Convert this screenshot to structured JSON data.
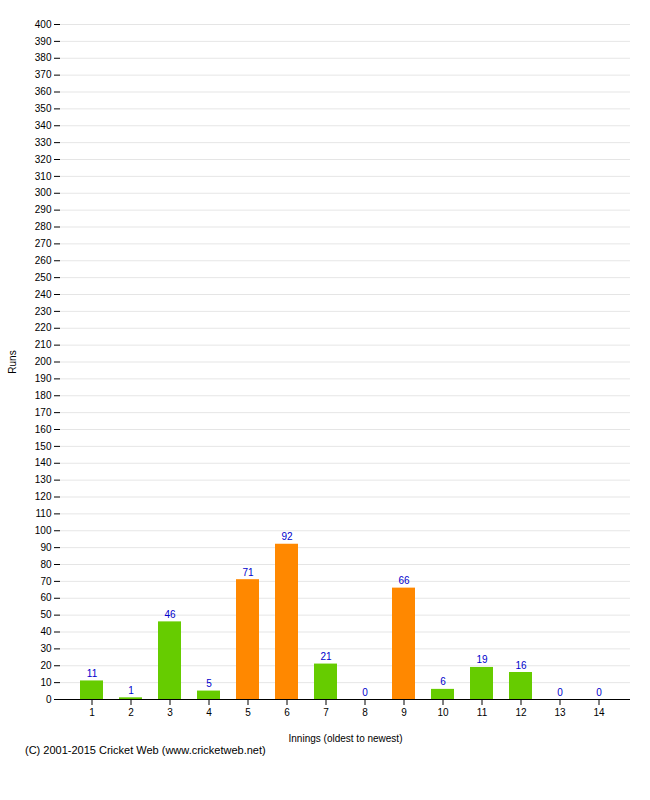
{
  "chart_data": {
    "type": "bar",
    "categories": [
      "1",
      "2",
      "3",
      "4",
      "5",
      "6",
      "7",
      "8",
      "9",
      "10",
      "11",
      "12",
      "13",
      "14"
    ],
    "values": [
      11,
      1,
      46,
      5,
      71,
      92,
      21,
      0,
      66,
      6,
      19,
      16,
      0,
      0
    ],
    "colors": [
      "#66cc00",
      "#66cc00",
      "#66cc00",
      "#66cc00",
      "#ff8800",
      "#ff8800",
      "#66cc00",
      "#66cc00",
      "#ff8800",
      "#66cc00",
      "#66cc00",
      "#66cc00",
      "#66cc00",
      "#66cc00"
    ],
    "xlabel": "Innings (oldest to newest)",
    "ylabel": "Runs",
    "caption": "(C) 2001-2015 Cricket Web (www.cricketweb.net)",
    "ylim": [
      0,
      400
    ],
    "yticks": [
      0,
      10,
      20,
      30,
      40,
      50,
      60,
      70,
      80,
      90,
      100,
      110,
      120,
      130,
      140,
      150,
      160,
      170,
      180,
      190,
      200,
      210,
      220,
      230,
      240,
      250,
      260,
      270,
      280,
      290,
      300,
      310,
      320,
      330,
      340,
      350,
      360,
      370,
      380,
      390,
      400
    ],
    "grid": true,
    "data_labels": true
  }
}
